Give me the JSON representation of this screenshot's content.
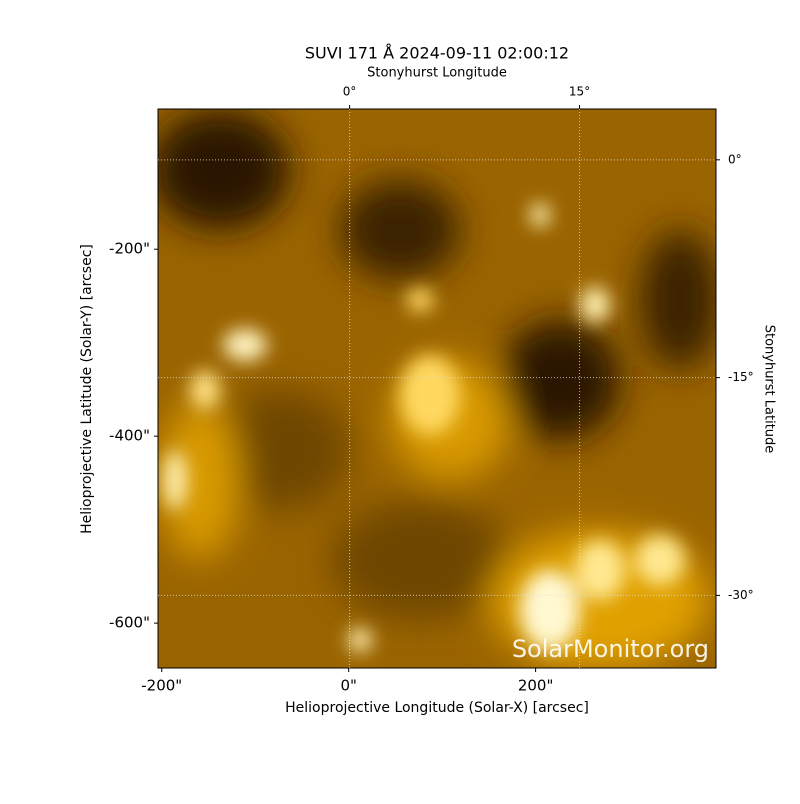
{
  "chart_data": {
    "type": "image",
    "title": "SUVI 171 Å 2024-09-11 02:00:12",
    "xlabel": "Helioprojective Longitude (Solar-X) [arcsec]",
    "ylabel": "Helioprojective Latitude (Solar-Y) [arcsec]",
    "xlim": [
      -204,
      393
    ],
    "ylim": [
      -648,
      -50
    ],
    "xticks": [
      {
        "value": -200,
        "label": "-200\""
      },
      {
        "value": 0,
        "label": "0\""
      },
      {
        "value": 200,
        "label": "200\""
      }
    ],
    "yticks": [
      {
        "value": -200,
        "label": "-200\""
      },
      {
        "value": -400,
        "label": "-400\""
      },
      {
        "value": -600,
        "label": "-600\""
      }
    ],
    "x2label": "Stonyhurst Longitude",
    "x2lim": [
      -12.5,
      23.9
    ],
    "x2ticks": [
      {
        "value": 0,
        "label": "0°"
      },
      {
        "value": 15,
        "label": "15°"
      }
    ],
    "y2label": "Stonyhurst Latitude",
    "y2lim": [
      -35,
      3.5
    ],
    "y2ticks": [
      {
        "value": 0,
        "label": "0°"
      },
      {
        "value": -15,
        "label": "-15°"
      },
      {
        "value": -30,
        "label": "-30°"
      }
    ],
    "grid": true,
    "watermark": "SolarMonitor.org"
  }
}
